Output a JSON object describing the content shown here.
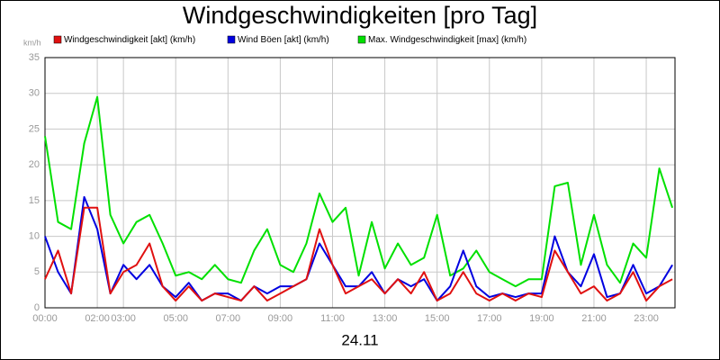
{
  "chart_data": {
    "type": "line",
    "title": "Windgeschwindigkeiten [pro Tag]",
    "y_label": "km/h",
    "x_label": "24.11",
    "x": [
      0,
      0.5,
      1,
      1.5,
      2,
      2.5,
      3,
      3.5,
      4,
      4.5,
      5,
      5.5,
      6,
      6.5,
      7,
      7.5,
      8,
      8.5,
      9,
      9.5,
      10,
      10.5,
      11,
      11.5,
      12,
      12.5,
      13,
      13.5,
      14,
      14.5,
      15,
      15.5,
      16,
      16.5,
      17,
      17.5,
      18,
      18.5,
      19,
      19.5,
      20,
      20.5,
      21,
      21.5,
      22,
      22.5,
      23,
      23.5,
      24
    ],
    "series": [
      {
        "name": "Windgeschwindigkeit [akt] (km/h)",
        "color": "#e01010",
        "values": [
          4,
          8,
          2,
          14,
          14,
          2,
          5,
          6,
          9,
          3,
          1,
          3,
          1,
          2,
          1.5,
          1,
          3,
          1,
          2,
          3,
          4,
          11,
          6,
          2,
          3,
          4,
          2,
          4,
          2,
          5,
          1,
          2,
          5,
          2,
          1,
          2,
          1,
          2,
          1.5,
          8,
          5,
          2,
          3,
          1,
          2,
          5,
          1,
          3,
          4
        ]
      },
      {
        "name": "Wind Böen [akt] (km/h)",
        "color": "#0000e0",
        "values": [
          10,
          5,
          2,
          15.5,
          11,
          2,
          6,
          4,
          6,
          3,
          1.5,
          3.5,
          1,
          2,
          2,
          1,
          3,
          2,
          3,
          3,
          4,
          9,
          6,
          3,
          3,
          5,
          2,
          4,
          3,
          4,
          1,
          3,
          8,
          3,
          1.5,
          2,
          1.5,
          2,
          2,
          10,
          5,
          3,
          7.5,
          1.5,
          2,
          6,
          2,
          3,
          6
        ]
      },
      {
        "name": "Max. Windgeschwindigkeit [max] (km/h)",
        "color": "#00e000",
        "values": [
          24,
          12,
          11,
          23,
          29.5,
          13,
          9,
          12,
          13,
          9,
          4.5,
          5,
          4,
          6,
          4,
          3.5,
          8,
          11,
          6,
          5,
          9,
          16,
          12,
          14,
          4.5,
          12,
          5.5,
          9,
          6,
          7,
          13,
          4.5,
          5.5,
          8,
          5,
          4,
          3,
          4,
          4,
          17,
          17.5,
          6,
          13,
          6,
          3.5,
          9,
          7,
          19.5,
          14
        ]
      }
    ],
    "xlim": [
      0,
      24.1
    ],
    "xticks": [
      {
        "value": 0,
        "label": "00:00"
      },
      {
        "value": 2,
        "label": "02:00"
      },
      {
        "value": 3,
        "label": "03:00"
      },
      {
        "value": 5,
        "label": "05:00"
      },
      {
        "value": 7,
        "label": "07:00"
      },
      {
        "value": 9,
        "label": "09:00"
      },
      {
        "value": 11,
        "label": "11:00"
      },
      {
        "value": 13,
        "label": "13:00"
      },
      {
        "value": 15,
        "label": "15:00"
      },
      {
        "value": 17,
        "label": "17:00"
      },
      {
        "value": 19,
        "label": "19:00"
      },
      {
        "value": 21,
        "label": "21:00"
      },
      {
        "value": 23,
        "label": "23:00"
      }
    ],
    "ylim": [
      0,
      35
    ],
    "yticks": [
      0,
      5,
      10,
      15,
      20,
      25,
      30,
      35
    ],
    "grid": true
  }
}
